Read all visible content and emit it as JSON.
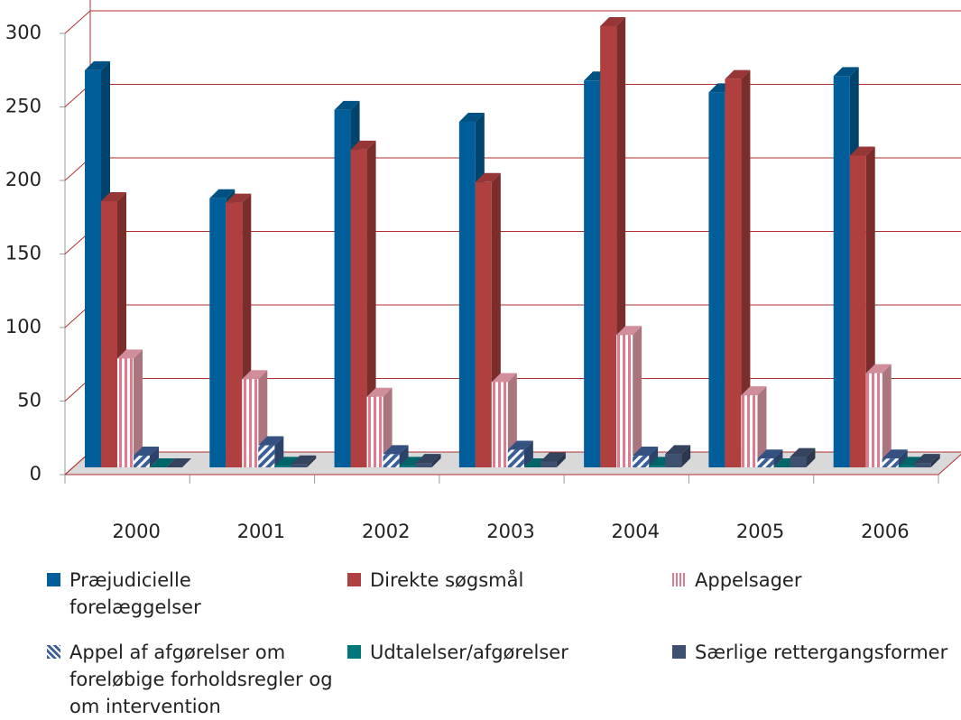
{
  "chart_data": {
    "type": "bar3d",
    "categories": [
      "2000",
      "2001",
      "2002",
      "2003",
      "2004",
      "2005",
      "2006"
    ],
    "series": [
      {
        "name": "Præjudicielle forelæggelser",
        "color": "#005f9a",
        "values": [
          270,
          183,
          243,
          235,
          263,
          255,
          266
        ]
      },
      {
        "name": "Direkte søgsmål",
        "color": "#b0403f",
        "values": [
          181,
          180,
          216,
          194,
          300,
          264,
          212
        ]
      },
      {
        "name": "Appelsager",
        "color": "#f4a7b4",
        "values": [
          74,
          60,
          48,
          58,
          90,
          49,
          64
        ]
      },
      {
        "name": "Appel af afgørelser om foreløbige forholdsregler og om intervention",
        "color": "#3d5f99",
        "values": [
          8,
          15,
          9,
          12,
          8,
          6,
          6
        ]
      },
      {
        "name": "Udtalelser/afgørelser",
        "color": "#00777a",
        "values": [
          0,
          1,
          1,
          0,
          1,
          0,
          1
        ]
      },
      {
        "name": "Særlige rettergangsformer",
        "color": "#3d5070",
        "values": [
          0,
          2,
          3,
          4,
          9,
          7,
          3
        ]
      }
    ],
    "ylim": [
      0,
      300
    ],
    "yticks": [
      0,
      50,
      100,
      150,
      200,
      250,
      300
    ],
    "grid": true
  }
}
